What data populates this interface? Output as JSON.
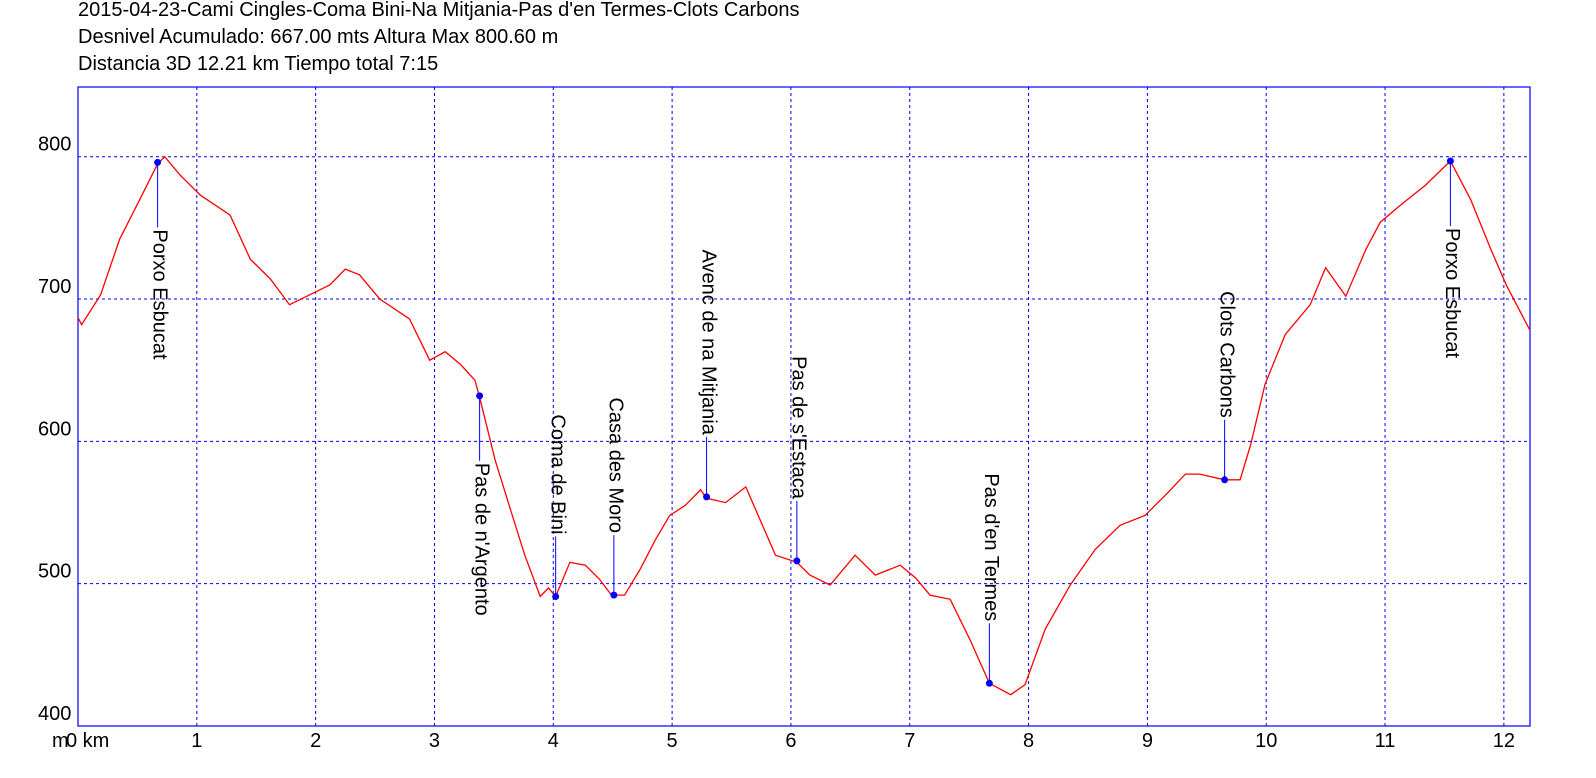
{
  "chart_data": {
    "type": "line",
    "title_lines": [
      "2015-04-23-Cami Cingles-Coma Bini-Na Mitjania-Pas d'en Termes-Clots Carbons",
      "Desnivel Acumulado: 667.00 mts  Altura Max 800.60 m",
      "Distancia 3D 12.21 km  Tiempo total 7:15"
    ],
    "y_unit_label": "m",
    "color": "#ff0000",
    "grid": true,
    "grid_color": "#0000ff",
    "frame_color": "#0000ff",
    "marker_color": "#0000ff",
    "xlim": [
      0,
      12.22
    ],
    "ylim": [
      400,
      849
    ],
    "xticks": [
      {
        "value": 0,
        "label": "0 km"
      },
      1,
      2,
      3,
      4,
      5,
      6,
      7,
      8,
      9,
      10,
      11,
      12
    ],
    "yticks": [
      400,
      500,
      600,
      700,
      800
    ],
    "x": [
      0,
      0.03,
      0.19,
      0.35,
      0.52,
      0.67,
      0.73,
      0.86,
      1.03,
      1.28,
      1.45,
      1.62,
      1.78,
      1.95,
      2.12,
      2.25,
      2.37,
      2.54,
      2.79,
      2.96,
      3.09,
      3.22,
      3.34,
      3.38,
      3.51,
      3.64,
      3.76,
      3.89,
      3.96,
      4.02,
      4.14,
      4.27,
      4.39,
      4.49,
      4.6,
      4.73,
      4.86,
      4.98,
      5.11,
      5.24,
      5.29,
      5.45,
      5.62,
      5.74,
      5.87,
      6.05,
      6.16,
      6.33,
      6.54,
      6.71,
      6.92,
      7.05,
      7.17,
      7.34,
      7.51,
      7.67,
      7.85,
      7.97,
      8.14,
      8.35,
      8.56,
      8.77,
      8.98,
      9.15,
      9.32,
      9.44,
      9.65,
      9.78,
      9.87,
      9.99,
      10.16,
      10.37,
      10.5,
      10.67,
      10.84,
      10.96,
      11.13,
      11.34,
      11.55,
      11.72,
      11.89,
      12.02,
      12.22
    ],
    "values": [
      687,
      682,
      703,
      742,
      770,
      795,
      800,
      787,
      773,
      759,
      728,
      714,
      696,
      703,
      710,
      721,
      717,
      700,
      686,
      657,
      663,
      654,
      643,
      631,
      587,
      552,
      520,
      491,
      497,
      491,
      515,
      513,
      503,
      492,
      492,
      510,
      531,
      548,
      555,
      566,
      560,
      557,
      568,
      545,
      520,
      515,
      506,
      499,
      520,
      506,
      513,
      504,
      492,
      489,
      460,
      430,
      422,
      429,
      468,
      499,
      524,
      541,
      548,
      562,
      577,
      577,
      573,
      573,
      598,
      640,
      675,
      696,
      722,
      702,
      735,
      754,
      766,
      780,
      797,
      770,
      735,
      710,
      678
    ],
    "waypoints": [
      {
        "name": "Porxo Esbucat",
        "x": 0.67,
        "value": 796,
        "label_side": "below"
      },
      {
        "name": "Pas de n'Argento",
        "x": 3.38,
        "value": 632,
        "label_side": "below"
      },
      {
        "name": "Coma de Bini",
        "x": 4.02,
        "value": 491,
        "label_side": "above"
      },
      {
        "name": "Casa des Moro",
        "x": 4.51,
        "value": 492,
        "label_side": "above"
      },
      {
        "name": "Avenc de na Mitjania",
        "x": 5.29,
        "value": 561,
        "label_side": "above"
      },
      {
        "name": "Pas de s'Estaca",
        "x": 6.05,
        "value": 516,
        "label_side": "above"
      },
      {
        "name": "Pas d'en Termes",
        "x": 7.67,
        "value": 430,
        "label_side": "above"
      },
      {
        "name": "Clots Carbons",
        "x": 9.65,
        "value": 573,
        "label_side": "above"
      },
      {
        "name": "Porxo Esbucat",
        "x": 11.55,
        "value": 797,
        "label_side": "below"
      }
    ]
  }
}
